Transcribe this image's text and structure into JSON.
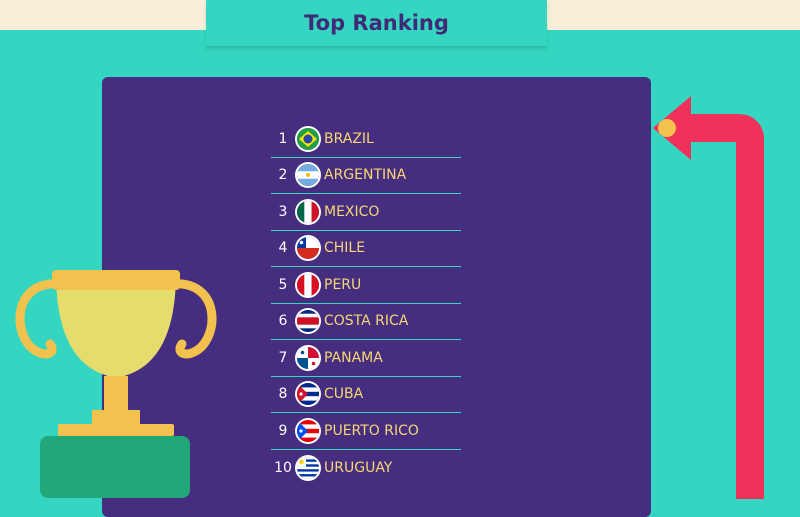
{
  "header": {
    "title": "Top Ranking"
  },
  "ranking": [
    {
      "rank": "1",
      "country": "BRAZIL",
      "flag": "brazil-flag-icon"
    },
    {
      "rank": "2",
      "country": "ARGENTINA",
      "flag": "argentina-flag-icon"
    },
    {
      "rank": "3",
      "country": "MEXICO",
      "flag": "mexico-flag-icon"
    },
    {
      "rank": "4",
      "country": "CHILE",
      "flag": "chile-flag-icon"
    },
    {
      "rank": "5",
      "country": "PERU",
      "flag": "peru-flag-icon"
    },
    {
      "rank": "6",
      "country": "COSTA RICA",
      "flag": "costa-rica-flag-icon"
    },
    {
      "rank": "7",
      "country": "PANAMA",
      "flag": "panama-flag-icon"
    },
    {
      "rank": "8",
      "country": "CUBA",
      "flag": "cuba-flag-icon"
    },
    {
      "rank": "9",
      "country": "PUERTO RICO",
      "flag": "puerto-rico-flag-icon"
    },
    {
      "rank": "10",
      "country": "URUGUAY",
      "flag": "uruguay-flag-icon"
    }
  ],
  "colors": {
    "background": "#35d6c1",
    "top_band": "#f9efd9",
    "panel": "#452d80",
    "title": "#3f2a78",
    "country_text": "#f7d774",
    "arrow": "#f0325a"
  }
}
